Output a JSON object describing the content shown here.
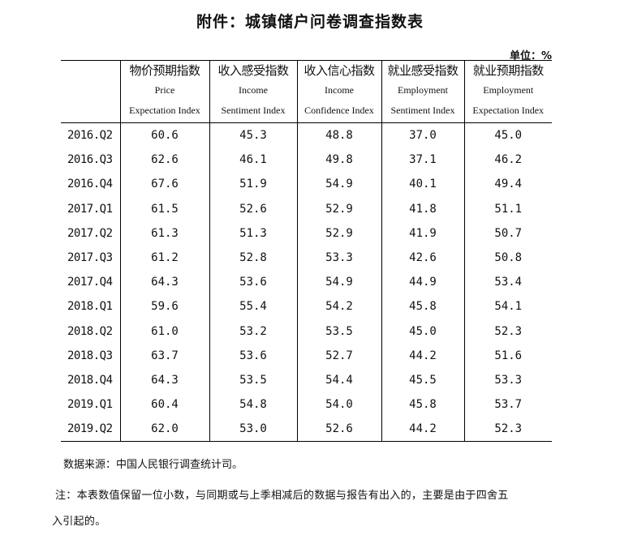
{
  "title": "附件：城镇储户问卷调查指数表",
  "unit": "单位：%",
  "columns": [
    {
      "zh": "物价预期指数",
      "en1": "Price",
      "en2": "Expectation Index"
    },
    {
      "zh": "收入感受指数",
      "en1": "Income",
      "en2": "Sentiment Index"
    },
    {
      "zh": "收入信心指数",
      "en1": "Income",
      "en2": "Confidence Index"
    },
    {
      "zh": "就业感受指数",
      "en1": "Employment",
      "en2": "Sentiment Index"
    },
    {
      "zh": "就业预期指数",
      "en1": "Employment",
      "en2": "Expectation Index"
    }
  ],
  "rows": [
    [
      "2016.Q2",
      "60.6",
      "45.3",
      "48.8",
      "37.0",
      "45.0"
    ],
    [
      "2016.Q3",
      "62.6",
      "46.1",
      "49.8",
      "37.1",
      "46.2"
    ],
    [
      "2016.Q4",
      "67.6",
      "51.9",
      "54.9",
      "40.1",
      "49.4"
    ],
    [
      "2017.Q1",
      "61.5",
      "52.6",
      "52.9",
      "41.8",
      "51.1"
    ],
    [
      "2017.Q2",
      "61.3",
      "51.3",
      "52.9",
      "41.9",
      "50.7"
    ],
    [
      "2017.Q3",
      "61.2",
      "52.8",
      "53.3",
      "42.6",
      "50.8"
    ],
    [
      "2017.Q4",
      "64.3",
      "53.6",
      "54.9",
      "44.9",
      "53.4"
    ],
    [
      "2018.Q1",
      "59.6",
      "55.4",
      "54.2",
      "45.8",
      "54.1"
    ],
    [
      "2018.Q2",
      "61.0",
      "53.2",
      "53.5",
      "45.0",
      "52.3"
    ],
    [
      "2018.Q3",
      "63.7",
      "53.6",
      "52.7",
      "44.2",
      "51.6"
    ],
    [
      "2018.Q4",
      "64.3",
      "53.5",
      "54.4",
      "45.5",
      "53.3"
    ],
    [
      "2019.Q1",
      "60.4",
      "54.8",
      "54.0",
      "45.8",
      "53.7"
    ],
    [
      "2019.Q2",
      "62.0",
      "53.0",
      "52.6",
      "44.2",
      "52.3"
    ]
  ],
  "source": "数据来源：中国人民银行调查统计司。",
  "note_line1": "注：本表数值保留一位小数，与同期或与上季相减后的数据与报告有出入的，主要是由于四舍五",
  "note_line2": "入引起的。"
}
